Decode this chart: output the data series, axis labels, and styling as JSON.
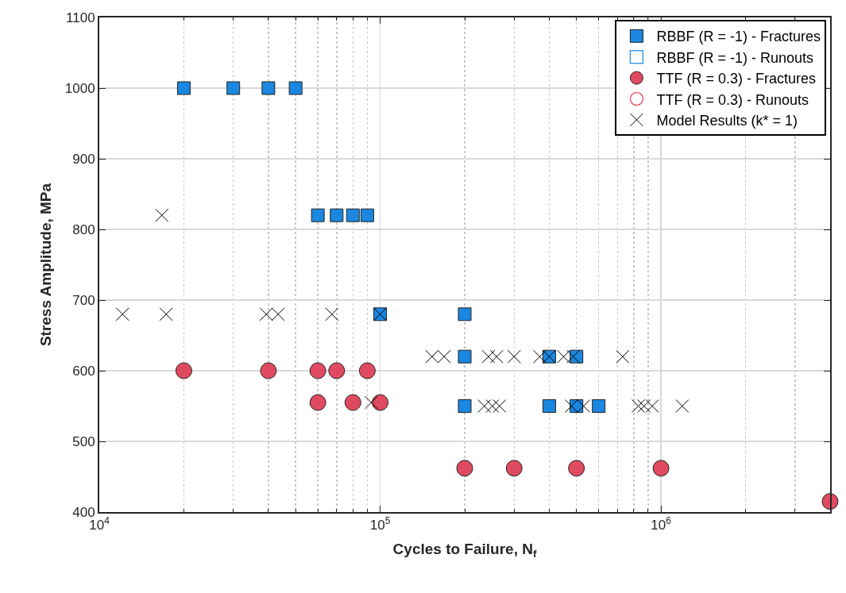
{
  "chart_data": {
    "type": "scatter",
    "xlabel": "Cycles to Failure, N$_{f}$",
    "ylabel": "Stress Amplitude, MPa",
    "log": "x",
    "xlim": [
      10000,
      4000000
    ],
    "xticks": [
      {
        "value": 10000,
        "label": "10$^{4}$"
      },
      {
        "value": 100000,
        "label": "10$^{5}$"
      },
      {
        "value": 1000000,
        "label": "10$^{6}$"
      }
    ],
    "ylim": [
      400,
      1100
    ],
    "yticks": [
      400,
      500,
      600,
      700,
      800,
      900,
      1000,
      1100
    ],
    "grid": true,
    "legend": "top right",
    "series": [
      {
        "name": "RBBF (R = -1) - Fractures",
        "color": "#1b87e0",
        "marker": "square",
        "x": [
          20000,
          30000,
          40000,
          50000,
          60000,
          70000,
          80000,
          90000,
          100000,
          200000,
          200000,
          400000,
          500000,
          200000,
          400000,
          500000,
          600000
        ],
        "values": [
          1000,
          1000,
          1000,
          1000,
          820,
          820,
          820,
          820,
          680,
          680,
          620,
          620,
          620,
          550,
          550,
          550,
          550
        ]
      },
      {
        "name": "RBBF (R = -1) - Runouts",
        "color": "#3d9cf0",
        "marker": "square"
      },
      {
        "name": "TTF (R = 0.3) - Fractures",
        "color": "#e04a60",
        "marker": "circle",
        "x": [
          20000,
          40000,
          60000,
          70000,
          90000,
          60000,
          80000,
          100000,
          200000,
          300000,
          500000,
          1000000,
          4000000
        ],
        "values": [
          600,
          600,
          600,
          600,
          600,
          555,
          555,
          555,
          462,
          462,
          462,
          462,
          415
        ]
      },
      {
        "name": "TTF (R = 0.3) - Runouts",
        "color": "#e85a70",
        "marker": "circle"
      },
      {
        "name": "Model Results (k* = 1)",
        "color": "#000000",
        "marker": "cross",
        "x": [
          16700,
          12100,
          17300,
          39300,
          43300,
          67300,
          100000,
          153000,
          169000,
          243000,
          260000,
          300000,
          370000,
          400000,
          450000,
          487000,
          730000,
          93000,
          235000,
          251000,
          266000,
          480000,
          530000,
          830000,
          870000,
          930000,
          1190000
        ],
        "values": [
          820,
          680,
          680,
          680,
          680,
          680,
          680,
          620,
          620,
          620,
          620,
          620,
          620,
          620,
          620,
          620,
          620,
          555,
          550,
          550,
          550,
          550,
          550,
          550,
          550,
          550,
          550
        ]
      }
    ]
  }
}
